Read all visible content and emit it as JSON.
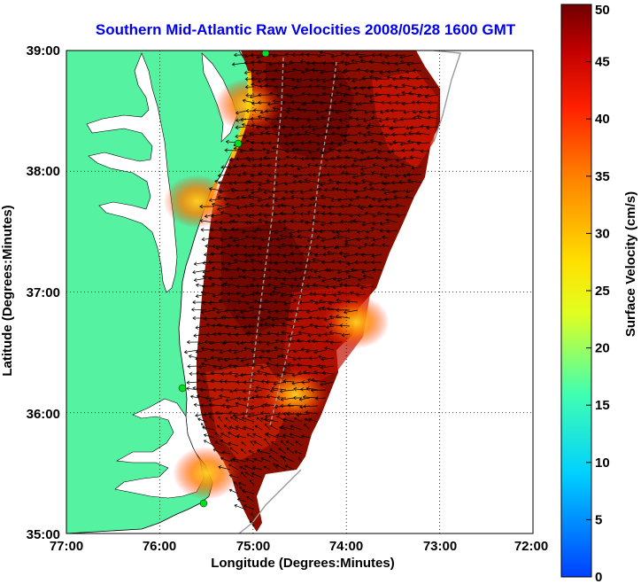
{
  "title": "Southern Mid-Atlantic Raw Velocities 2008/05/28 1600 GMT",
  "x_axis": {
    "label": "Longitude (Degrees:Minutes)",
    "ticks": [
      "77:00",
      "76:00",
      "75:00",
      "74:00",
      "73:00",
      "72:00"
    ]
  },
  "y_axis": {
    "label": "Latitude (Degrees:Minutes)",
    "ticks": [
      "39:00",
      "38:00",
      "37:00",
      "36:00",
      "35:00"
    ]
  },
  "colorbar": {
    "label": "Surface Velocity (cm/s)",
    "ticks": [
      "50",
      "45",
      "40",
      "35",
      "30",
      "25",
      "20",
      "15",
      "10",
      "5",
      "0"
    ],
    "range": [
      0,
      50
    ]
  },
  "colors": {
    "land": "#55f2a2",
    "ocean": "#ffffff",
    "title": "#0000ee",
    "station": "#00e020"
  },
  "grid": "dotted",
  "hotspots": [
    {
      "lon": -73.9,
      "lat": 36.75,
      "speed": 30
    },
    {
      "lon": -74.55,
      "lat": 36.15,
      "speed": 35
    },
    {
      "lon": -75.6,
      "lat": 37.75,
      "speed": 33
    },
    {
      "lon": -75.05,
      "lat": 38.55,
      "speed": 30
    },
    {
      "lon": -75.5,
      "lat": 35.5,
      "speed": 28
    }
  ]
}
